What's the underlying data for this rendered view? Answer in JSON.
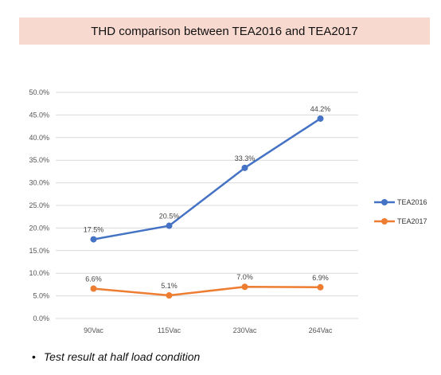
{
  "chart_data": {
    "type": "line",
    "title": "THD comparison between TEA2016 and TEA2017",
    "categories": [
      "90Vac",
      "115Vac",
      "230Vac",
      "264Vac"
    ],
    "ylim": [
      0,
      50
    ],
    "yticks": [
      "0.0%",
      "5.0%",
      "10.0%",
      "15.0%",
      "20.0%",
      "25.0%",
      "30.0%",
      "35.0%",
      "40.0%",
      "45.0%",
      "50.0%"
    ],
    "grid": true,
    "legend": "right",
    "series": [
      {
        "name": "TEA2016",
        "color": "#4472c4",
        "values": [
          17.5,
          20.5,
          33.3,
          44.2
        ],
        "labels": [
          "17.5%",
          "20.5%",
          "33.3%",
          "44.2%"
        ]
      },
      {
        "name": "TEA2017",
        "color": "#ed7d31",
        "values": [
          6.6,
          5.1,
          7.0,
          6.9
        ],
        "labels": [
          "6.6%",
          "5.1%",
          "7.0%",
          "6.9%"
        ]
      }
    ]
  },
  "note": {
    "bullet": "•",
    "text": "Test result at half load condition"
  }
}
